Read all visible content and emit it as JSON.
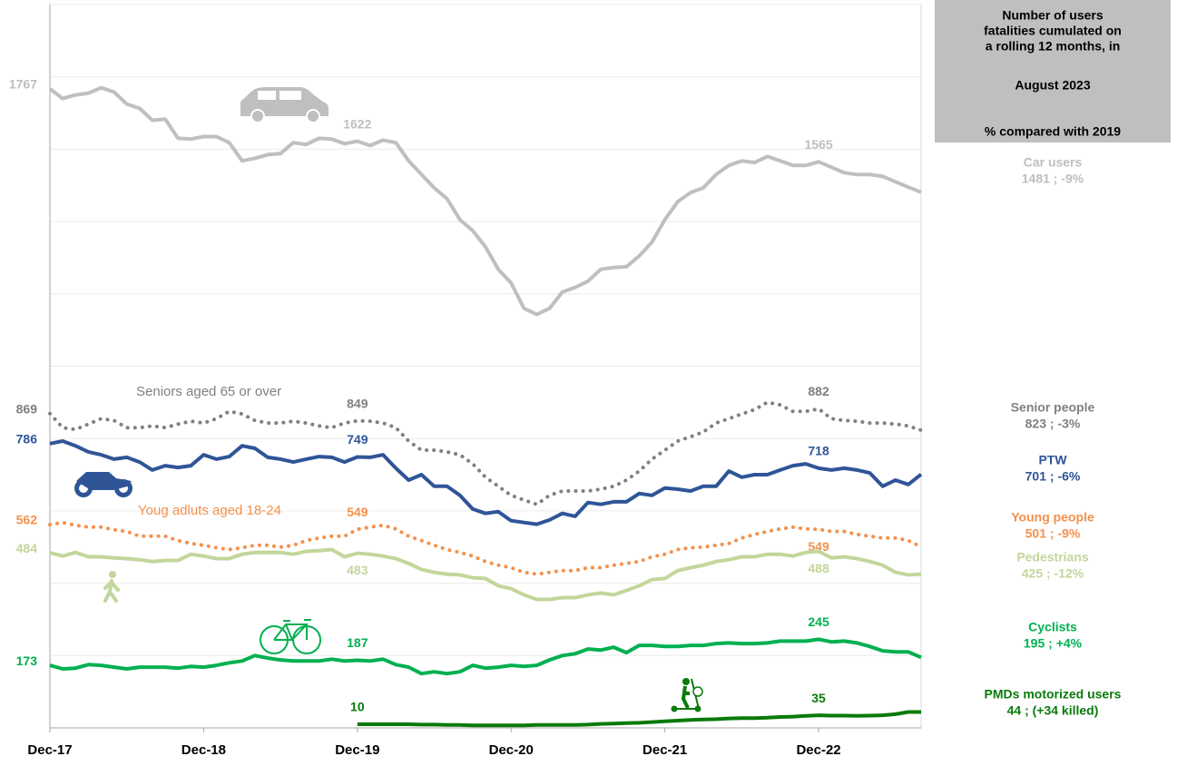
{
  "chart_data": {
    "type": "line",
    "panel_title": [
      "Number of users",
      "fatalities cumulated on",
      "a rolling 12 months, in"
    ],
    "period": "August 2023",
    "comparison": "% compared with 2019",
    "categories": [
      "Dec-17",
      null,
      null,
      null,
      null,
      null,
      null,
      null,
      null,
      null,
      null,
      null,
      "Dec-18",
      null,
      null,
      null,
      null,
      null,
      null,
      null,
      null,
      null,
      null,
      null,
      "Dec-19",
      null,
      null,
      null,
      null,
      null,
      null,
      null,
      null,
      null,
      null,
      null,
      "Dec-20",
      null,
      null,
      null,
      null,
      null,
      null,
      null,
      null,
      null,
      null,
      null,
      "Dec-21",
      null,
      null,
      null,
      null,
      null,
      null,
      null,
      null,
      null,
      null,
      null,
      "Dec-22",
      null,
      null,
      null,
      null,
      null,
      null,
      null,
      null
    ],
    "ylim": [
      0,
      2000
    ],
    "yticks": [
      0,
      200,
      400,
      600,
      800,
      1000,
      1200,
      1400,
      1600,
      1800,
      2000
    ],
    "ytick_labels": false,
    "grid": true,
    "series": [
      {
        "name": "Car users",
        "summary": "1481 ; -9%",
        "color": "#bfbfbf",
        "style": "solid",
        "label_points": [
          0,
          24,
          60
        ],
        "values": [
          1767,
          1740,
          1750,
          1755,
          1770,
          1758,
          1725,
          1713,
          1680,
          1683,
          1630,
          1628,
          1635,
          1635,
          1618,
          1568,
          1575,
          1585,
          1588,
          1618,
          1613,
          1630,
          1628,
          1615,
          1622,
          1610,
          1625,
          1618,
          1568,
          1530,
          1493,
          1463,
          1405,
          1375,
          1330,
          1268,
          1230,
          1160,
          1143,
          1160,
          1205,
          1218,
          1235,
          1268,
          1273,
          1275,
          1305,
          1343,
          1405,
          1455,
          1480,
          1493,
          1530,
          1555,
          1568,
          1563,
          1580,
          1568,
          1555,
          1555,
          1565,
          1550,
          1535,
          1530,
          1530,
          1525,
          1510,
          1495,
          1481
        ]
      },
      {
        "name": "Senior people",
        "summary": "823 ; -3%",
        "annotation": "Seniors aged 65 or over",
        "color": "#808080",
        "style": "dotted",
        "label_points": [
          0,
          24,
          60
        ],
        "values": [
          869,
          830,
          825,
          840,
          855,
          850,
          830,
          830,
          835,
          830,
          840,
          848,
          843,
          855,
          875,
          868,
          850,
          843,
          843,
          848,
          843,
          835,
          830,
          843,
          849,
          848,
          843,
          830,
          793,
          768,
          768,
          763,
          755,
          730,
          693,
          668,
          643,
          630,
          618,
          643,
          655,
          655,
          655,
          660,
          668,
          685,
          710,
          743,
          768,
          793,
          805,
          818,
          843,
          855,
          868,
          880,
          900,
          893,
          875,
          875,
          882,
          855,
          850,
          848,
          843,
          843,
          840,
          835,
          823
        ]
      },
      {
        "name": "PTW",
        "summary": "701 ; -6%",
        "color": "#2f5597",
        "style": "solid",
        "label_points": [
          0,
          24,
          60
        ],
        "values": [
          786,
          793,
          780,
          763,
          755,
          743,
          748,
          735,
          713,
          725,
          720,
          725,
          755,
          743,
          750,
          780,
          773,
          748,
          743,
          735,
          743,
          750,
          748,
          735,
          749,
          748,
          755,
          718,
          685,
          700,
          668,
          668,
          643,
          605,
          593,
          598,
          573,
          568,
          563,
          575,
          593,
          585,
          623,
          618,
          625,
          625,
          648,
          643,
          663,
          660,
          655,
          668,
          668,
          710,
          693,
          700,
          700,
          713,
          725,
          730,
          718,
          713,
          718,
          713,
          705,
          668,
          685,
          673,
          701
        ]
      },
      {
        "name": "Young people",
        "summary": "501 ; -9%",
        "annotation": "Youg adluts aged 18-24",
        "color": "#f4914c",
        "style": "dotted",
        "label_points": [
          0,
          24,
          60
        ],
        "values": [
          562,
          568,
          560,
          555,
          555,
          548,
          543,
          530,
          530,
          530,
          518,
          510,
          505,
          498,
          493,
          498,
          505,
          505,
          500,
          505,
          518,
          525,
          530,
          530,
          549,
          555,
          560,
          550,
          530,
          518,
          505,
          493,
          485,
          475,
          460,
          450,
          443,
          430,
          425,
          430,
          435,
          435,
          443,
          443,
          450,
          455,
          460,
          473,
          480,
          493,
          498,
          500,
          505,
          510,
          525,
          535,
          543,
          550,
          555,
          550,
          549,
          543,
          543,
          535,
          530,
          525,
          525,
          518,
          501
        ]
      },
      {
        "name": "Pedestrians",
        "summary": "425 ; -12%",
        "color": "#c3d69b",
        "style": "solid",
        "label_points": [
          0,
          24,
          60
        ],
        "values": [
          484,
          475,
          485,
          473,
          473,
          470,
          468,
          465,
          460,
          463,
          463,
          480,
          475,
          468,
          468,
          480,
          485,
          485,
          485,
          480,
          488,
          490,
          493,
          473,
          483,
          480,
          475,
          468,
          455,
          438,
          430,
          425,
          423,
          415,
          413,
          393,
          385,
          368,
          355,
          355,
          360,
          360,
          368,
          373,
          368,
          380,
          393,
          410,
          413,
          435,
          443,
          450,
          460,
          465,
          473,
          473,
          480,
          480,
          475,
          485,
          488,
          470,
          473,
          468,
          460,
          450,
          430,
          423,
          425
        ]
      },
      {
        "name": "Cyclists",
        "summary": "195 ; +4%",
        "color": "#00b050",
        "style": "solid",
        "label_points": [
          0,
          24,
          60
        ],
        "values": [
          173,
          163,
          165,
          175,
          173,
          168,
          163,
          168,
          168,
          168,
          165,
          170,
          168,
          173,
          180,
          185,
          200,
          193,
          188,
          185,
          185,
          185,
          190,
          185,
          187,
          185,
          190,
          175,
          168,
          150,
          155,
          150,
          155,
          173,
          165,
          168,
          173,
          170,
          173,
          188,
          200,
          205,
          218,
          215,
          223,
          208,
          228,
          228,
          225,
          225,
          228,
          228,
          233,
          235,
          233,
          233,
          235,
          240,
          240,
          240,
          245,
          238,
          240,
          235,
          225,
          213,
          210,
          210,
          195
        ]
      },
      {
        "name": "PMDs motorized users",
        "summary": "44 ; (+34 killed)",
        "color": "#0a7a0a",
        "style": "solid",
        "label_points": [
          24,
          60
        ],
        "values": [
          null,
          null,
          null,
          null,
          null,
          null,
          null,
          null,
          null,
          null,
          null,
          null,
          null,
          null,
          null,
          null,
          null,
          null,
          null,
          null,
          null,
          null,
          null,
          null,
          10,
          10,
          10,
          10,
          10,
          9,
          9,
          8,
          8,
          7,
          7,
          7,
          7,
          7,
          8,
          8,
          8,
          8,
          9,
          11,
          12,
          13,
          14,
          16,
          18,
          20,
          22,
          23,
          24,
          26,
          27,
          27,
          28,
          30,
          31,
          33,
          35,
          34,
          34,
          33,
          34,
          35,
          38,
          44,
          44
        ]
      }
    ]
  }
}
